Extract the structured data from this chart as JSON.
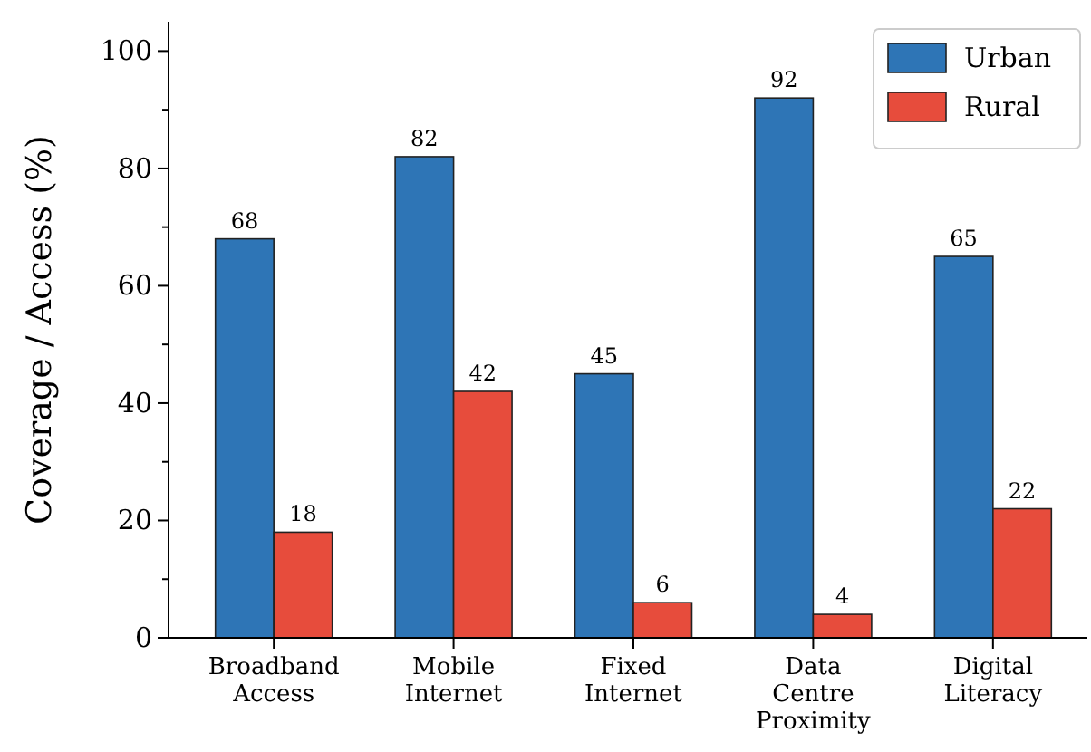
{
  "chart_data": {
    "type": "bar",
    "ylabel": "Coverage / Access (%)",
    "categories": [
      "Broadband Access",
      "Mobile Internet",
      "Fixed Internet",
      "Data Centre Proximity",
      "Digital Literacy"
    ],
    "series": [
      {
        "name": "Urban",
        "color": "#2e75b6",
        "values": [
          68,
          82,
          45,
          92,
          65
        ]
      },
      {
        "name": "Rural",
        "color": "#e74c3c",
        "values": [
          18,
          42,
          6,
          4,
          22
        ]
      }
    ],
    "ylim": [
      0,
      105
    ],
    "yticks": [
      0,
      {
        "value": 10,
        "label": null
      },
      20,
      {
        "value": 30,
        "label": null
      },
      40,
      {
        "value": 50,
        "label": null
      },
      60,
      {
        "value": 70,
        "label": null
      },
      80,
      {
        "value": 90,
        "label": null
      },
      100
    ],
    "data_labels": true,
    "legend": "top right",
    "grid": false
  }
}
